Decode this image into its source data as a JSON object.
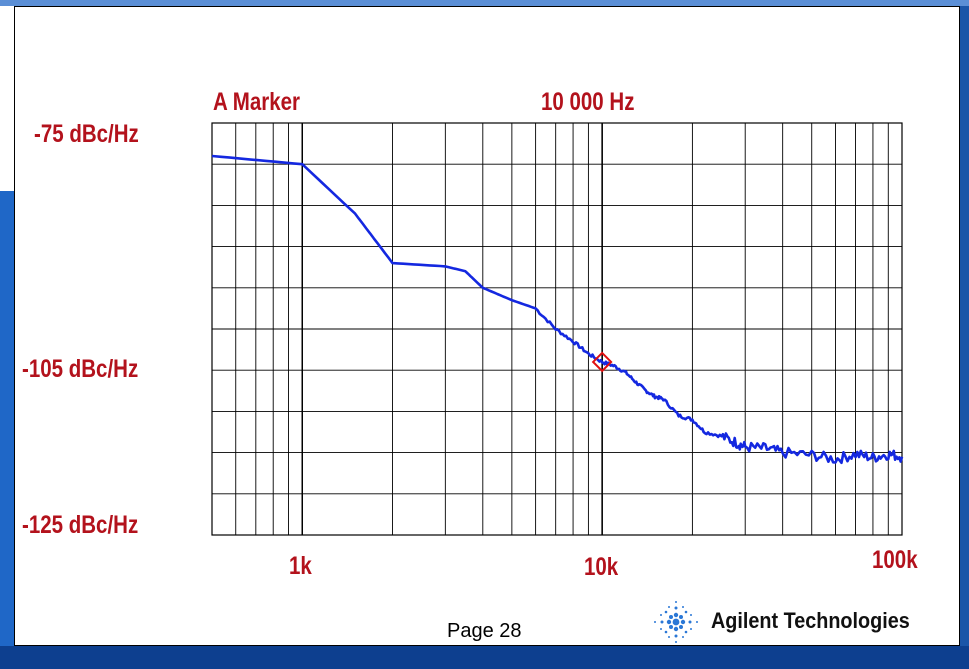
{
  "chart_data": {
    "type": "line",
    "x_scale": "log",
    "xlim": [
      500,
      100000
    ],
    "ylim": [
      -125,
      -75
    ],
    "x_tick_labels": [
      "1k",
      "10k",
      "100k"
    ],
    "y_tick_labels": [
      "-75 dBc/Hz",
      "-105 dBc/Hz",
      "-125 dBc/Hz"
    ],
    "grid": true,
    "marker": {
      "label": "A Marker",
      "value_label": "10 000 Hz",
      "x": 10000,
      "y": -104
    },
    "series": [
      {
        "color": "#1428e0",
        "x": [
          500,
          1000,
          1500,
          2000,
          3000,
          3500,
          4000,
          5000,
          6000,
          7000,
          8000,
          9000,
          10000,
          11000,
          12000,
          13000,
          14000,
          15000,
          16000,
          18000,
          20000,
          22000,
          25000,
          28000,
          30000,
          35000,
          40000,
          50000,
          60000,
          70000,
          80000,
          90000,
          100000
        ],
        "y": [
          -79,
          -80,
          -86,
          -92,
          -92.4,
          -93,
          -95,
          -96.5,
          -97.5,
          -100,
          -101.5,
          -103,
          -104,
          -104.5,
          -105.3,
          -106.5,
          -107.5,
          -108.2,
          -108.5,
          -110.5,
          -111,
          -112.5,
          -113,
          -113.8,
          -114.3,
          -114.5,
          -115,
          -115.3,
          -115.8,
          -115.2,
          -115.6,
          -115.2,
          -115.5
        ]
      }
    ]
  },
  "footer": {
    "page": "Page 28",
    "brand": "Agilent Technologies"
  },
  "colors": {
    "label_red": "#b3121c",
    "trace_blue": "#1428e0",
    "marker_red": "#e01010"
  }
}
